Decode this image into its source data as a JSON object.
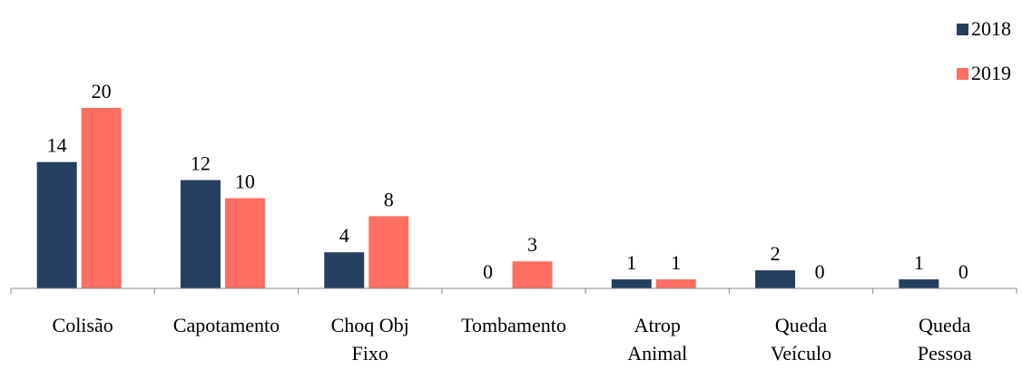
{
  "chart_data": {
    "type": "bar",
    "categories": [
      [
        "Colisão"
      ],
      [
        "Capotamento"
      ],
      [
        "Choq Obj",
        "Fixo"
      ],
      [
        "Tombamento"
      ],
      [
        "Atrop",
        "Animal"
      ],
      [
        "Queda",
        "Veículo"
      ],
      [
        "Queda",
        "Pessoa"
      ]
    ],
    "series": [
      {
        "name": "2018",
        "color": "#243f60",
        "values": [
          14,
          12,
          4,
          0,
          1,
          2,
          1
        ]
      },
      {
        "name": "2019",
        "color": "#ff6f61",
        "values": [
          20,
          10,
          8,
          3,
          1,
          0,
          0
        ]
      }
    ],
    "ylim": [
      0,
      20
    ],
    "data_labels": true,
    "grid": false,
    "legend_position": "top-right"
  }
}
